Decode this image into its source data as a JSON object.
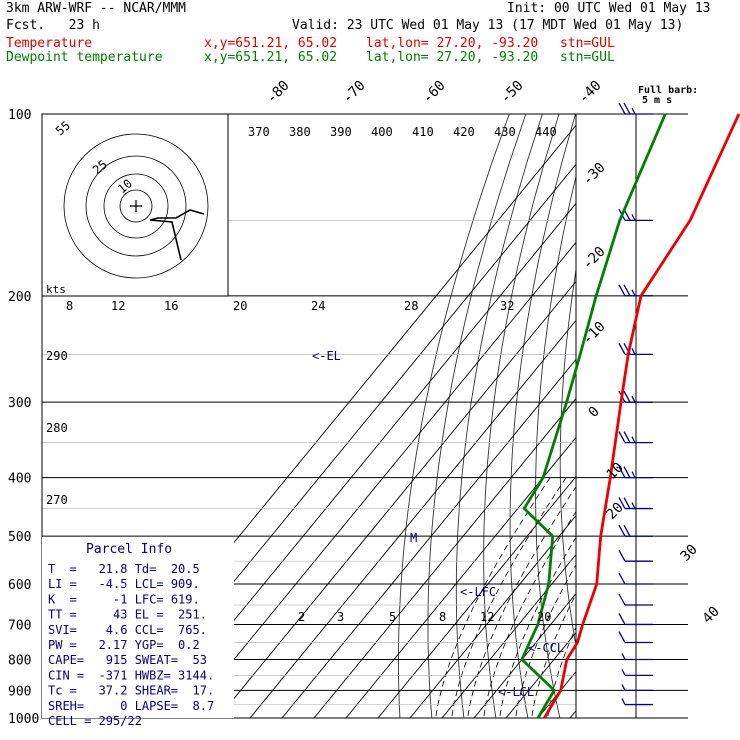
{
  "header": {
    "model": "3km ARW-WRF -- NCAR/MMM",
    "init": "Init: 00 UTC Wed 01 May 13",
    "fcst": "Fcst.   23 h",
    "valid": "Valid: 23 UTC Wed 01 May 13 (17 MDT Wed 01 May 13)",
    "temp_label": "Temperature",
    "dew_label": "Dewpoint temperature",
    "xy": "x,y=651.21, 65.02",
    "latlon": "lat,lon= 27.20, -93.20",
    "stn": "stn=GUL"
  },
  "barb_key": {
    "line1": "Full barb:",
    "line2": "5 m s"
  },
  "parcel": {
    "title": "Parcel Info",
    "rows": [
      "T  =   21.8 Td=  20.5",
      "LI =   -4.5 LCL= 909.",
      "K  =     -1 LFC= 619.",
      "TT =     43 EL =  251.",
      "SVI=    4.6 CCL=  765.",
      "PW =   2.17 YGP=  0.2",
      "CAPE=   915 SWEAT=  53",
      "CIN =  -371 HWBZ= 3144.",
      "Tc =   37.2 SHEAR=  17.",
      "SREH=     0 LAPSE=  8.7",
      "CELL = 295/22"
    ]
  },
  "colors": {
    "temperature": "#ee0000",
    "dewpoint": "#008000",
    "annotation": "#000080",
    "barb": "#000080"
  },
  "chart_data": {
    "type": "skew-t",
    "pressure_levels": [
      100,
      200,
      300,
      400,
      500,
      600,
      700,
      800,
      900,
      1000
    ],
    "temp_labels": [
      "-80",
      "-70",
      "-60",
      "-50",
      "-40",
      "-30",
      "-20",
      "-10",
      "0",
      "10",
      "20",
      "30",
      "40"
    ],
    "theta_labels": [
      "370",
      "380",
      "390",
      "400",
      "410",
      "420",
      "430",
      "440"
    ],
    "mixing_ratio_top_labels": [
      "8",
      "12",
      "16",
      "20",
      "24",
      "28",
      "32"
    ],
    "mixing_ratio_bottom_labels": [
      "2",
      "3",
      "5",
      "8",
      "12",
      "20"
    ],
    "hodograph_rings": [
      "55",
      "25",
      "10"
    ],
    "hodograph_unit": "kts",
    "height_labels": [
      "290",
      "280",
      "270"
    ],
    "annotations": [
      "<-EL",
      "<-LFC",
      "<-CCL",
      "<-LCL",
      "M"
    ],
    "temperature_profile": [
      [
        100,
        -72
      ],
      [
        150,
        -60
      ],
      [
        200,
        -56
      ],
      [
        250,
        -45
      ],
      [
        300,
        -35
      ],
      [
        400,
        -19
      ],
      [
        500,
        -7
      ],
      [
        600,
        4
      ],
      [
        700,
        10
      ],
      [
        750,
        13
      ],
      [
        800,
        14
      ],
      [
        900,
        20
      ],
      [
        950,
        21
      ],
      [
        1000,
        22
      ]
    ],
    "dewpoint_profile": [
      [
        100,
        -95
      ],
      [
        150,
        -82
      ],
      [
        200,
        -70
      ],
      [
        250,
        -60
      ],
      [
        300,
        -52
      ],
      [
        400,
        -40
      ],
      [
        450,
        -38
      ],
      [
        500,
        -22
      ],
      [
        600,
        -11
      ],
      [
        700,
        -4
      ],
      [
        750,
        -2
      ],
      [
        800,
        0
      ],
      [
        900,
        18
      ],
      [
        950,
        19
      ],
      [
        1000,
        20
      ]
    ],
    "wind_barbs": [
      [
        100,
        0,
        25
      ],
      [
        150,
        0,
        25
      ],
      [
        200,
        0,
        25
      ],
      [
        250,
        0,
        25
      ],
      [
        300,
        0,
        25
      ],
      [
        350,
        0,
        25
      ],
      [
        400,
        0,
        25
      ],
      [
        450,
        0,
        25
      ],
      [
        500,
        0,
        20
      ],
      [
        550,
        0,
        10
      ],
      [
        600,
        0,
        10
      ],
      [
        650,
        0,
        10
      ],
      [
        700,
        0,
        10
      ],
      [
        750,
        0,
        10
      ],
      [
        800,
        0,
        5
      ],
      [
        850,
        0,
        5
      ],
      [
        900,
        0,
        5
      ],
      [
        950,
        0,
        5
      ]
    ]
  }
}
